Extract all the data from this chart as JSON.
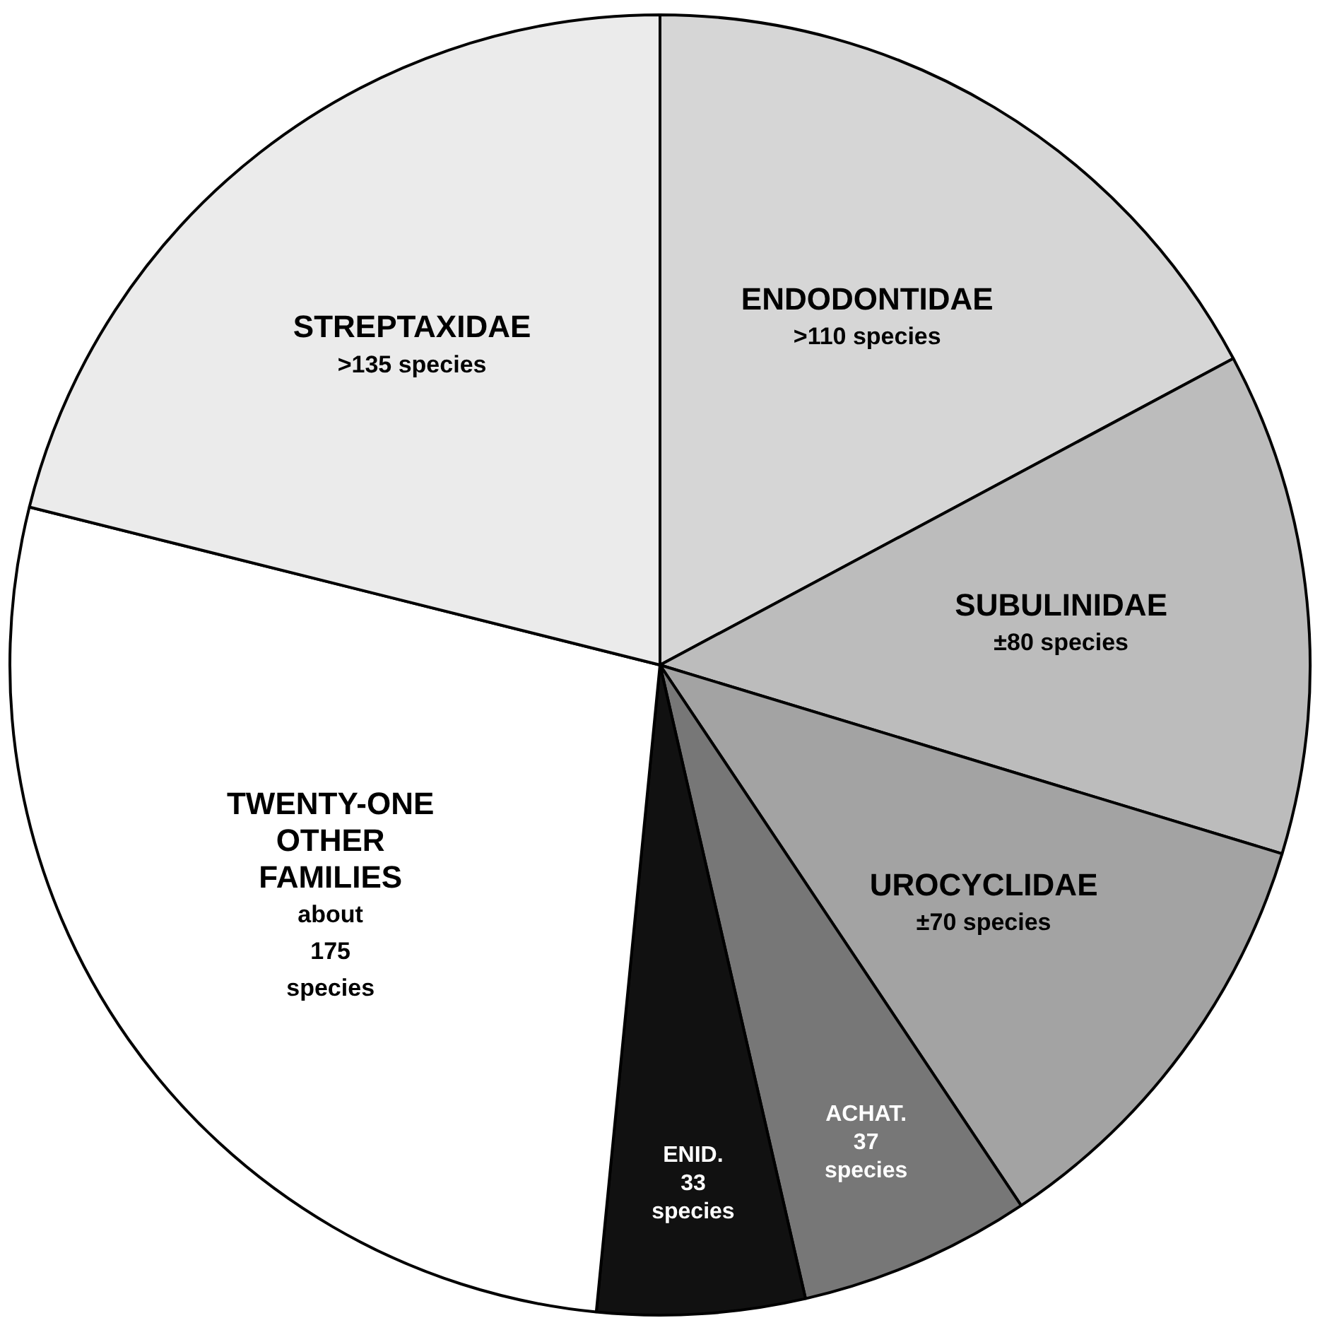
{
  "chart_data": {
    "type": "pie",
    "categories": [
      "ENDODONTIDAE",
      "SUBULINIDAE",
      "UROCYCLIDAE",
      "ACHAT.",
      "ENID.",
      "TWENTY-ONE OTHER FAMILIES",
      "STREPTAXIDAE"
    ],
    "values": [
      110,
      80,
      70,
      37,
      33,
      175,
      135
    ],
    "value_labels": [
      ">110 species",
      "±80 species",
      "±70 species",
      "37 species",
      "33 species",
      "about 175 species",
      ">135 species"
    ],
    "colors": [
      "#d6d6d6",
      "#bcbcbc",
      "#a3a3a3",
      "#777777",
      "#111111",
      "#ffffff",
      "#ebebeb"
    ],
    "legend": false
  }
}
